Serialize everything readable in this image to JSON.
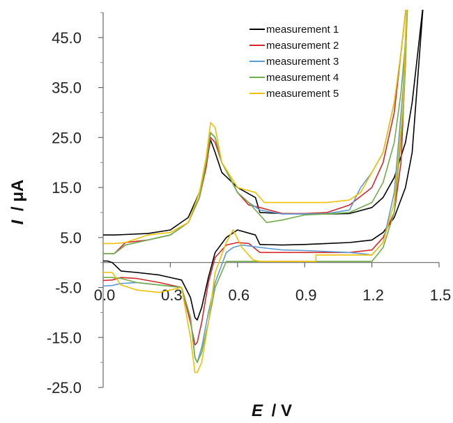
{
  "chart_data": {
    "type": "line",
    "xlabel_var": "E",
    "xlabel_unit": "/ V",
    "ylabel_var": "I",
    "ylabel_unit": "/ μA",
    "xlim": [
      0,
      1.5
    ],
    "ylim": [
      -25,
      50
    ],
    "x_ticks": [
      0.0,
      0.3,
      0.6,
      0.9,
      1.2,
      1.5
    ],
    "x_tick_labels": [
      "0.0",
      "0.3",
      "0.6",
      "0.9",
      "1.2",
      "1.5"
    ],
    "y_ticks": [
      45,
      35,
      25,
      15,
      5,
      -5,
      -15,
      -25
    ],
    "y_tick_labels": [
      "45.0",
      "35.0",
      "25.0",
      "15.0",
      "5.0",
      "-5.0",
      "-15.0",
      "-25.0"
    ],
    "grid": false,
    "legend_position": "top-right",
    "series": [
      {
        "name": "measurement 1",
        "color": "#000000",
        "x": [
          0.0,
          0.05,
          0.1,
          0.2,
          0.3,
          0.38,
          0.43,
          0.46,
          0.48,
          0.5,
          0.53,
          0.6,
          0.68,
          0.7,
          0.8,
          0.9,
          1.0,
          1.1,
          1.2,
          1.25,
          1.3,
          1.35,
          1.38,
          1.4,
          1.42,
          1.43,
          1.41,
          1.38,
          1.35,
          1.3,
          1.25,
          1.2,
          1.1,
          1.0,
          0.9,
          0.8,
          0.7,
          0.68,
          0.6,
          0.55,
          0.5,
          0.47,
          0.44,
          0.42,
          0.41,
          0.39,
          0.35,
          0.25,
          0.15,
          0.08,
          0.04,
          0.02,
          0.0
        ],
        "y": [
          5.5,
          5.5,
          5.6,
          5.8,
          6.5,
          9,
          14,
          20,
          24.5,
          22,
          18,
          15,
          13,
          10,
          9.8,
          9.7,
          9.7,
          9.8,
          11,
          13,
          17,
          24,
          32,
          40,
          48,
          52,
          40,
          22,
          15,
          9,
          6,
          4.5,
          4,
          3.8,
          3.6,
          3.5,
          3.6,
          5.5,
          6.5,
          5,
          2,
          -3,
          -9,
          -11.5,
          -11,
          -7,
          -3.5,
          -2.5,
          -2.0,
          -1.7,
          0.0,
          0.3,
          0.3
        ]
      },
      {
        "name": "measurement 2",
        "color": "#d62728",
        "x": [
          0.0,
          0.05,
          0.1,
          0.2,
          0.3,
          0.38,
          0.43,
          0.46,
          0.48,
          0.5,
          0.53,
          0.6,
          0.65,
          0.7,
          0.8,
          0.9,
          1.0,
          1.1,
          1.2,
          1.25,
          1.3,
          1.33,
          1.35,
          1.36,
          1.35,
          1.33,
          1.3,
          1.25,
          1.2,
          1.1,
          1.0,
          0.9,
          0.8,
          0.7,
          0.65,
          0.6,
          0.55,
          0.5,
          0.47,
          0.44,
          0.42,
          0.41,
          0.39,
          0.35,
          0.25,
          0.15,
          0.08,
          0.04,
          0.0
        ],
        "y": [
          1.8,
          1.8,
          4,
          4.5,
          5.5,
          8,
          13,
          19,
          25,
          24,
          20,
          14,
          11.5,
          11,
          9.8,
          9.8,
          10,
          11.5,
          15,
          20,
          30,
          42,
          50,
          55,
          40,
          20,
          10,
          5,
          2.5,
          2.0,
          2.0,
          2.0,
          2.0,
          2.0,
          3.8,
          4,
          3.5,
          1,
          -4,
          -12,
          -16,
          -16.5,
          -12,
          -5,
          -4,
          -3.2,
          -3.0,
          -3.5,
          -3.6
        ]
      },
      {
        "name": "measurement 3",
        "color": "#5b9bd5",
        "x": [
          0.0,
          0.05,
          0.1,
          0.2,
          0.3,
          0.38,
          0.43,
          0.46,
          0.48,
          0.5,
          0.53,
          0.6,
          0.65,
          0.7,
          0.8,
          0.9,
          1.0,
          1.1,
          1.15,
          1.2,
          1.25,
          1.3,
          1.33,
          1.35,
          1.36,
          1.34,
          1.3,
          1.25,
          1.2,
          1.15,
          1.1,
          1.0,
          0.9,
          0.8,
          0.7,
          0.62,
          0.58,
          0.55,
          0.5,
          0.47,
          0.44,
          0.42,
          0.41,
          0.39,
          0.35,
          0.25,
          0.15,
          0.08,
          0.04,
          0.0
        ],
        "y": [
          1.8,
          1.8,
          3.5,
          4.5,
          5.5,
          8,
          13,
          20,
          26,
          25,
          20,
          14,
          12,
          10.5,
          9.7,
          9.7,
          9.8,
          10.5,
          15,
          18,
          22,
          32,
          42,
          50,
          55,
          35,
          14,
          4,
          1.5,
          1.8,
          2.0,
          2.2,
          2.4,
          2.5,
          3,
          3.5,
          3,
          2,
          -4,
          -10,
          -17,
          -20,
          -19,
          -11,
          -5,
          -4.5,
          -4,
          -4.2,
          -4.6,
          -4.7
        ]
      },
      {
        "name": "measurement 4",
        "color": "#70ad47",
        "x": [
          0.0,
          0.05,
          0.1,
          0.2,
          0.3,
          0.38,
          0.43,
          0.46,
          0.48,
          0.5,
          0.53,
          0.6,
          0.65,
          0.7,
          0.73,
          0.8,
          0.9,
          1.0,
          1.1,
          1.2,
          1.25,
          1.3,
          1.33,
          1.35,
          1.36,
          1.34,
          1.3,
          1.25,
          1.2,
          1.1,
          1.0,
          0.9,
          0.8,
          0.7,
          0.6,
          0.55,
          0.5,
          0.47,
          0.44,
          0.42,
          0.41,
          0.39,
          0.35,
          0.25,
          0.15,
          0.08,
          0.04,
          0.0
        ],
        "y": [
          1.8,
          1.8,
          3.5,
          4.5,
          5.5,
          8,
          13,
          20,
          26,
          25,
          20,
          14,
          12,
          9.5,
          8,
          8.5,
          9.5,
          9.7,
          10,
          12,
          16,
          24,
          34,
          44,
          52,
          30,
          10,
          3,
          0.2,
          0.2,
          0.2,
          0.2,
          0.2,
          0.2,
          0.2,
          0.2,
          -5,
          -12,
          -18,
          -20,
          -19,
          -11,
          -5,
          -4.5,
          -4,
          -3.2,
          -3,
          -3.0
        ]
      },
      {
        "name": "measurement 5",
        "color": "#f0c000",
        "x": [
          0.0,
          0.05,
          0.1,
          0.2,
          0.3,
          0.38,
          0.43,
          0.46,
          0.48,
          0.5,
          0.53,
          0.6,
          0.68,
          0.72,
          0.8,
          0.9,
          1.0,
          1.1,
          1.15,
          1.2,
          1.25,
          1.3,
          1.33,
          1.35,
          1.36,
          1.34,
          1.3,
          1.25,
          1.2,
          1.1,
          1.0,
          0.95,
          0.95,
          0.9,
          0.8,
          0.7,
          0.67,
          0.62,
          0.58,
          0.55,
          0.5,
          0.47,
          0.44,
          0.42,
          0.41,
          0.39,
          0.35,
          0.25,
          0.15,
          0.08,
          0.04,
          0.0
        ],
        "y": [
          3.8,
          3.8,
          4,
          5.5,
          6,
          8,
          14,
          21,
          28,
          27,
          20,
          15,
          14,
          12,
          12,
          12,
          12,
          12.5,
          14,
          18,
          22,
          32,
          42,
          50,
          55,
          32,
          12,
          4,
          1.5,
          1.5,
          1.5,
          1.5,
          0.2,
          0.2,
          0.2,
          0.2,
          0.5,
          3,
          6.5,
          4,
          -2,
          -12,
          -20,
          -22,
          -22,
          -15,
          -5,
          -6,
          -5.5,
          -4.5,
          -2,
          -2
        ]
      }
    ]
  }
}
